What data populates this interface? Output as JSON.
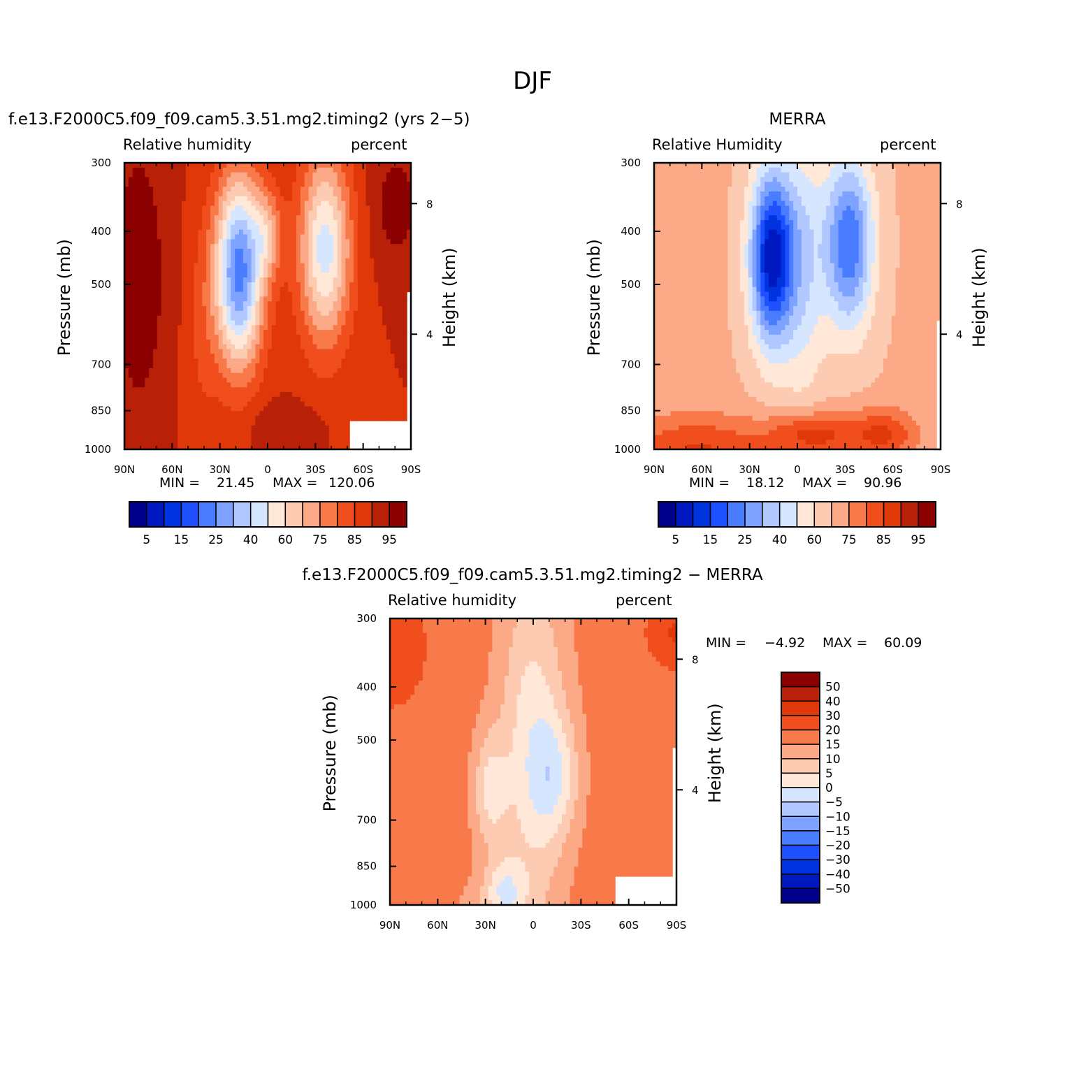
{
  "figure_title": "DJF",
  "palettes": {
    "absolute": [
      "#00008b",
      "#0018c0",
      "#0033e0",
      "#1e50ff",
      "#4a7cff",
      "#7ea2ff",
      "#b0c8ff",
      "#d6e6ff",
      "#ffe8d8",
      "#fdcbb2",
      "#fba986",
      "#f8794a",
      "#f04e1d",
      "#e03808",
      "#b82008",
      "#8b0000"
    ],
    "difference": [
      "#00008b",
      "#0018c0",
      "#0033e0",
      "#1e50ff",
      "#4a7cff",
      "#7ea2ff",
      "#b0c8ff",
      "#d6e6ff",
      "#ffe8d8",
      "#fdcbb2",
      "#fba986",
      "#f8794a",
      "#f04e1d",
      "#e03808",
      "#b82008",
      "#8b0000"
    ]
  },
  "chart_data": [
    {
      "type": "heatmap",
      "title": "f.e13.F2000C5.f09_f09.cam5.3.51.mg2.timing2 (yrs 2−5)",
      "left_string": "Relative humidity",
      "right_string": "percent",
      "ylabel": "Pressure (mb)",
      "ylabel_right": "Height (km)",
      "x_ticks": [
        "90N",
        "60N",
        "30N",
        "0",
        "30S",
        "60S",
        "90S"
      ],
      "y_ticks": [
        "300",
        "400",
        "500",
        "700",
        "850",
        "1000"
      ],
      "y_ticks_right": [
        "8",
        "4"
      ],
      "ylim": [
        1000,
        300
      ],
      "y_scale": "log",
      "min_label": "MIN =",
      "min_value": "21.45",
      "max_label": "MAX =",
      "max_value": "120.06",
      "colorbar_labels": [
        "5",
        "15",
        "25",
        "40",
        "60",
        "75",
        "85",
        "95"
      ]
    },
    {
      "type": "heatmap",
      "title": "MERRA",
      "left_string": "Relative Humidity",
      "right_string": "percent",
      "ylabel": "Pressure (mb)",
      "ylabel_right": "Height (km)",
      "x_ticks": [
        "90N",
        "60N",
        "30N",
        "0",
        "30S",
        "60S",
        "90S"
      ],
      "y_ticks": [
        "300",
        "400",
        "500",
        "700",
        "850",
        "1000"
      ],
      "y_ticks_right": [
        "8",
        "4"
      ],
      "ylim": [
        1000,
        300
      ],
      "y_scale": "log",
      "min_label": "MIN =",
      "min_value": "18.12",
      "max_label": "MAX =",
      "max_value": "90.96",
      "colorbar_labels": [
        "5",
        "15",
        "25",
        "40",
        "60",
        "75",
        "85",
        "95"
      ]
    },
    {
      "type": "heatmap",
      "title": "f.e13.F2000C5.f09_f09.cam5.3.51.mg2.timing2 − MERRA",
      "left_string": "Relative humidity",
      "right_string": "percent",
      "ylabel": "Pressure (mb)",
      "ylabel_right": "Height (km)",
      "x_ticks": [
        "90N",
        "60N",
        "30N",
        "0",
        "30S",
        "60S",
        "90S"
      ],
      "y_ticks": [
        "300",
        "400",
        "500",
        "700",
        "850",
        "1000"
      ],
      "y_ticks_right": [
        "8",
        "4"
      ],
      "ylim": [
        1000,
        300
      ],
      "y_scale": "log",
      "min_label": "MIN =",
      "min_value": "−4.92",
      "max_label": "MAX =",
      "max_value": "60.09",
      "colorbar_labels": [
        "50",
        "40",
        "30",
        "20",
        "15",
        "10",
        "5",
        "0",
        "−5",
        "−10",
        "−15",
        "−20",
        "−30",
        "−40",
        "−50"
      ]
    }
  ]
}
